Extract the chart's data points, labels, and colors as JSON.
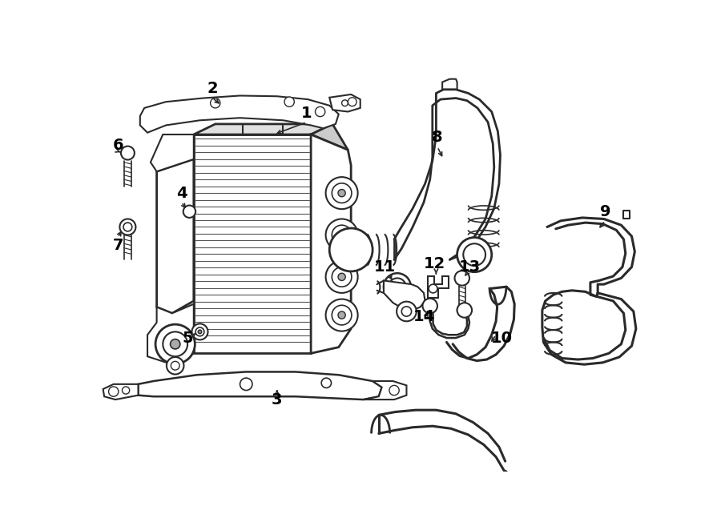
{
  "background_color": "#ffffff",
  "line_color": "#2a2a2a",
  "text_color": "#000000",
  "fig_width": 9.0,
  "fig_height": 6.62,
  "dpi": 100
}
